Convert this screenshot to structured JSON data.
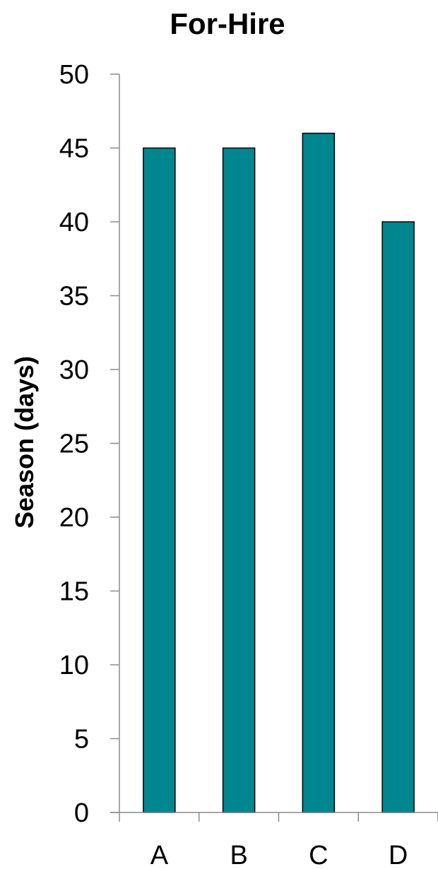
{
  "chart_data": {
    "type": "bar",
    "title": "For-Hire",
    "xlabel": "",
    "ylabel": "Season (days)",
    "categories": [
      "A",
      "B",
      "C",
      "D"
    ],
    "values": [
      45,
      45,
      46,
      40
    ],
    "ylim": [
      0,
      50
    ],
    "yticks": [
      0,
      5,
      10,
      15,
      20,
      25,
      30,
      35,
      40,
      45,
      50
    ],
    "grid": false,
    "legend": "none",
    "bar_color": "#00868f"
  }
}
